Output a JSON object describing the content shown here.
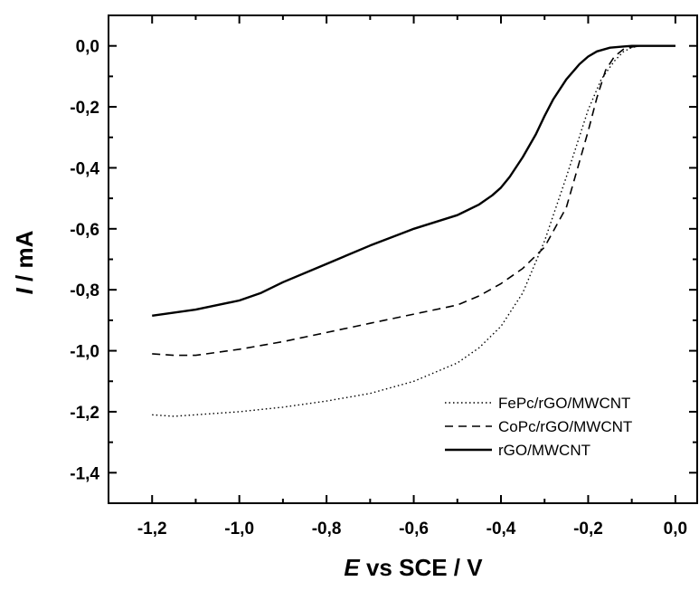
{
  "chart_data": {
    "type": "line",
    "title": "",
    "xlabel_var": "E",
    "xlabel_rest": " vs SCE / V",
    "ylabel_var": "I",
    "ylabel_rest": " / mA",
    "xlim": [
      -1.3,
      0.05
    ],
    "ylim": [
      -1.5,
      0.1
    ],
    "xticks": [
      -1.2,
      -1.0,
      -0.8,
      -0.6,
      -0.4,
      -0.2,
      0.0
    ],
    "xtick_labels": [
      "-1,2",
      "-1,0",
      "-0,8",
      "-0,6",
      "-0,4",
      "-0,2",
      "0,0"
    ],
    "yticks": [
      0.0,
      -0.2,
      -0.4,
      -0.6,
      -0.8,
      -1.0,
      -1.2,
      -1.4
    ],
    "ytick_labels": [
      "0,0",
      "-0,2",
      "-0,4",
      "-0,6",
      "-0,8",
      "-1,0",
      "-1,2",
      "-1,4"
    ],
    "grid": false,
    "legend_position": "bottom-right",
    "series": [
      {
        "name": "FePc/rGO/MWCNT",
        "style": "dotted",
        "color": "#000000",
        "x": [
          -1.2,
          -1.15,
          -1.1,
          -1.0,
          -0.9,
          -0.8,
          -0.7,
          -0.6,
          -0.5,
          -0.45,
          -0.4,
          -0.35,
          -0.3,
          -0.25,
          -0.2,
          -0.17,
          -0.14,
          -0.12,
          -0.1,
          -0.08,
          -0.05,
          0.0
        ],
        "y": [
          -1.21,
          -1.215,
          -1.21,
          -1.2,
          -1.185,
          -1.165,
          -1.14,
          -1.1,
          -1.04,
          -0.99,
          -0.92,
          -0.81,
          -0.64,
          -0.43,
          -0.21,
          -0.11,
          -0.05,
          -0.02,
          -0.005,
          0.0,
          0.0,
          0.0
        ]
      },
      {
        "name": "CoPc/rGO/MWCNT",
        "style": "dashed",
        "color": "#000000",
        "x": [
          -1.2,
          -1.15,
          -1.1,
          -1.0,
          -0.9,
          -0.8,
          -0.7,
          -0.6,
          -0.5,
          -0.45,
          -0.4,
          -0.35,
          -0.3,
          -0.25,
          -0.22,
          -0.2,
          -0.18,
          -0.16,
          -0.14,
          -0.12,
          -0.1,
          -0.08,
          -0.05,
          0.0
        ],
        "y": [
          -1.01,
          -1.015,
          -1.015,
          -0.995,
          -0.97,
          -0.94,
          -0.91,
          -0.88,
          -0.85,
          -0.82,
          -0.78,
          -0.73,
          -0.66,
          -0.53,
          -0.38,
          -0.28,
          -0.17,
          -0.08,
          -0.035,
          -0.012,
          -0.004,
          0.0,
          0.0,
          0.0
        ]
      },
      {
        "name": "rGO/MWCNT",
        "style": "solid",
        "color": "#000000",
        "x": [
          -1.2,
          -1.1,
          -1.0,
          -0.95,
          -0.9,
          -0.8,
          -0.7,
          -0.6,
          -0.5,
          -0.45,
          -0.42,
          -0.4,
          -0.38,
          -0.35,
          -0.32,
          -0.3,
          -0.28,
          -0.25,
          -0.22,
          -0.2,
          -0.18,
          -0.15,
          -0.12,
          -0.1,
          -0.05,
          0.0
        ],
        "y": [
          -0.885,
          -0.865,
          -0.835,
          -0.81,
          -0.775,
          -0.715,
          -0.655,
          -0.6,
          -0.555,
          -0.52,
          -0.49,
          -0.465,
          -0.43,
          -0.365,
          -0.29,
          -0.23,
          -0.175,
          -0.11,
          -0.06,
          -0.035,
          -0.018,
          -0.006,
          -0.002,
          0.0,
          0.0,
          0.0
        ]
      }
    ]
  }
}
